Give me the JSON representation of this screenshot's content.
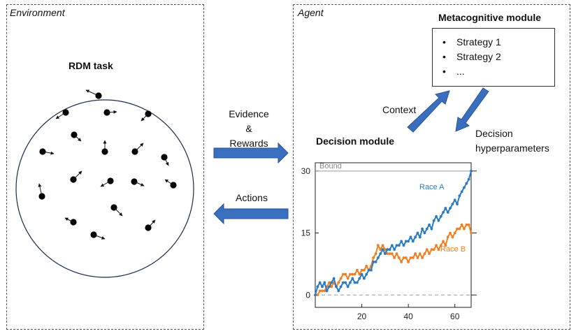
{
  "environment": {
    "title": "Environment",
    "rdm_title": "RDM task"
  },
  "agent": {
    "title": "Agent",
    "metacognitive": {
      "title": "Metacognitive module",
      "strategies": [
        "Strategy 1",
        "Strategy 2",
        "..."
      ]
    },
    "decision_title": "Decision module"
  },
  "flows": {
    "evidence": [
      "Evidence",
      "&",
      "Rewards"
    ],
    "actions": "Actions",
    "context": "Context",
    "decision_hyperparameters": [
      "Decision",
      "hyperparameters"
    ]
  },
  "colors": {
    "arrow": "#3a6fbf",
    "race_a": "#2b7bc1",
    "race_b": "#f07f22",
    "bound": "#9a9a9a"
  },
  "chart_data": {
    "type": "line",
    "xlim": [
      0,
      67
    ],
    "ylim": [
      -3,
      32
    ],
    "xticks": [
      20,
      40,
      60
    ],
    "yticks": [
      0,
      15,
      30
    ],
    "bound_label": "Bound",
    "bound_value": 30,
    "zero_line": 0,
    "series": [
      {
        "name": "Race A",
        "color": "#2b7bc1",
        "x": [
          0,
          1,
          2,
          3,
          4,
          5,
          6,
          7,
          8,
          9,
          10,
          11,
          12,
          13,
          14,
          15,
          16,
          17,
          18,
          19,
          20,
          21,
          22,
          23,
          24,
          25,
          26,
          27,
          28,
          29,
          30,
          31,
          32,
          33,
          34,
          35,
          36,
          37,
          38,
          39,
          40,
          41,
          42,
          43,
          44,
          45,
          46,
          47,
          48,
          49,
          50,
          51,
          52,
          53,
          54,
          55,
          56,
          57,
          58,
          59,
          60,
          61,
          62,
          63,
          64,
          65,
          66,
          67
        ],
        "y": [
          0,
          2,
          3,
          2,
          3,
          1,
          2,
          3,
          4,
          2,
          1,
          2,
          3,
          3,
          2,
          3,
          4,
          3,
          3,
          4,
          5,
          4,
          5,
          6,
          6,
          8,
          8,
          9,
          10,
          11,
          10,
          11,
          11,
          12,
          11,
          12,
          12,
          13,
          12,
          13,
          13,
          14,
          13,
          14,
          15,
          14,
          16,
          15,
          16,
          17,
          16,
          18,
          19,
          18,
          19,
          20,
          21,
          20,
          21,
          22,
          23,
          22,
          24,
          25,
          26,
          27,
          28,
          30
        ]
      },
      {
        "name": "Race B",
        "color": "#f07f22",
        "x": [
          0,
          1,
          2,
          3,
          4,
          5,
          6,
          7,
          8,
          9,
          10,
          11,
          12,
          13,
          14,
          15,
          16,
          17,
          18,
          19,
          20,
          21,
          22,
          23,
          24,
          25,
          26,
          27,
          28,
          29,
          30,
          31,
          32,
          33,
          34,
          35,
          36,
          37,
          38,
          39,
          40,
          41,
          42,
          43,
          44,
          45,
          46,
          47,
          48,
          49,
          50,
          51,
          52,
          53,
          54,
          55,
          56,
          57,
          58,
          59,
          60,
          61,
          62,
          63,
          64,
          65,
          66,
          67
        ],
        "y": [
          0,
          0,
          1,
          1,
          1,
          2,
          3,
          2,
          3,
          2,
          3,
          4,
          5,
          5,
          4,
          5,
          5,
          5,
          6,
          5,
          6,
          6,
          7,
          6,
          7,
          9,
          10,
          12,
          11,
          12,
          11,
          10,
          10,
          10,
          9,
          10,
          9,
          8,
          9,
          9,
          8,
          9,
          9,
          10,
          9,
          10,
          9,
          10,
          11,
          10,
          11,
          11,
          12,
          11,
          12,
          13,
          12,
          14,
          15,
          14,
          15,
          16,
          16,
          17,
          16,
          17,
          17,
          15
        ]
      }
    ],
    "end_labels": [
      "Race A",
      "Race B"
    ]
  }
}
